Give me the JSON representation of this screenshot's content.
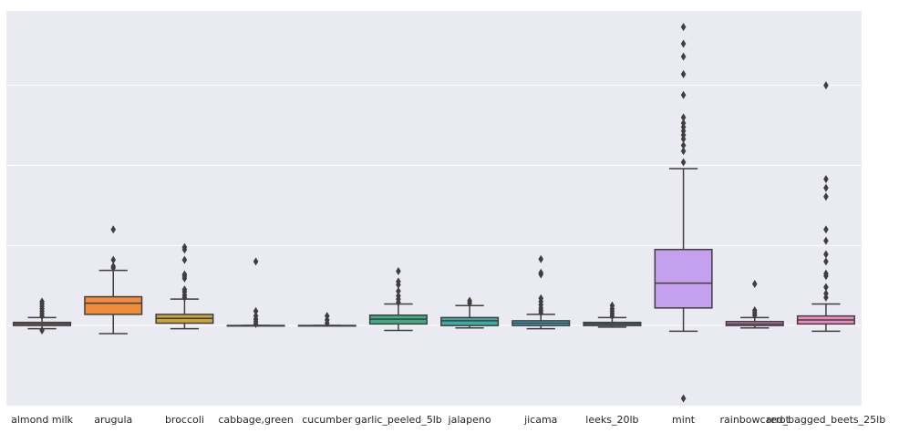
{
  "chart_data": {
    "type": "box",
    "title": "",
    "xlabel": "",
    "ylabel": "",
    "ylim": [
      -10,
      39.3
    ],
    "grid": true,
    "background": "#eaeaf2",
    "gridlines_y": [
      0,
      10,
      20,
      30
    ],
    "categories": [
      "almond milk",
      "arugula",
      "broccoli",
      "cabbage,green",
      "cucumber",
      "garlic_peeled_5lb",
      "jalapeno",
      "jicama",
      "leeks_20lb",
      "mint",
      "rainbowcarrot",
      "red_bagged_beets_25lb"
    ],
    "colors": [
      "#e8828e",
      "#f08d3c",
      "#c9a53f",
      "#9aac3f",
      "#4cb262",
      "#3fae84",
      "#3cada4",
      "#3baac0",
      "#4a9dd6",
      "#c4a0ef",
      "#e480cf",
      "#f089c0"
    ],
    "boxes": [
      {
        "whislo": -0.4,
        "q1": 0.0,
        "med": 0.2,
        "q3": 0.4,
        "whishi": 1.0,
        "fliers": [
          1.2,
          1.5,
          1.8,
          2.1,
          2.4,
          2.7,
          3.0,
          -0.6
        ]
      },
      {
        "whislo": -1.0,
        "q1": 1.4,
        "med": 2.8,
        "q3": 3.6,
        "whishi": 6.9,
        "fliers": [
          7.2,
          7.4,
          8.2,
          12.0
        ]
      },
      {
        "whislo": -0.4,
        "q1": 0.3,
        "med": 0.9,
        "q3": 1.4,
        "whishi": 3.3,
        "fliers": [
          3.5,
          3.8,
          4.2,
          4.5,
          5.9,
          6.2,
          6.4,
          8.2,
          9.5,
          9.8
        ]
      },
      {
        "whislo": 0.0,
        "q1": 0.0,
        "med": 0.0,
        "q3": 0.0,
        "whishi": 0.0,
        "fliers": [
          0.2,
          0.5,
          0.8,
          1.2,
          1.8,
          8.0
        ]
      },
      {
        "whislo": 0.0,
        "q1": 0.0,
        "med": 0.0,
        "q3": 0.0,
        "whishi": 0.0,
        "fliers": [
          0.3,
          0.7,
          1.2
        ]
      },
      {
        "whislo": -0.6,
        "q1": 0.2,
        "med": 0.8,
        "q3": 1.3,
        "whishi": 2.7,
        "fliers": [
          2.9,
          3.3,
          3.7,
          4.3,
          5.1,
          5.5,
          6.8
        ]
      },
      {
        "whislo": -0.3,
        "q1": 0.0,
        "med": 0.6,
        "q3": 1.0,
        "whishi": 2.5,
        "fliers": [
          2.8,
          3.1
        ]
      },
      {
        "whislo": -0.4,
        "q1": 0.0,
        "med": 0.3,
        "q3": 0.6,
        "whishi": 1.4,
        "fliers": [
          1.6,
          1.9,
          2.2,
          2.6,
          3.0,
          3.4,
          6.4,
          6.6,
          8.3
        ]
      },
      {
        "whislo": -0.2,
        "q1": 0.0,
        "med": 0.2,
        "q3": 0.4,
        "whishi": 1.0,
        "fliers": [
          1.2,
          1.5,
          1.8,
          2.1,
          2.5
        ]
      },
      {
        "whislo": -0.7,
        "q1": 2.2,
        "med": 5.3,
        "q3": 9.5,
        "whishi": 19.6,
        "fliers": [
          20.4,
          21.8,
          22.5,
          23.3,
          23.8,
          24.3,
          24.8,
          25.3,
          26.0,
          28.8,
          31.4,
          33.6,
          35.2,
          37.3,
          -9.1
        ]
      },
      {
        "whislo": -0.3,
        "q1": 0.0,
        "med": 0.2,
        "q3": 0.5,
        "whishi": 1.0,
        "fliers": [
          1.3,
          1.6,
          1.9,
          5.2
        ]
      },
      {
        "whislo": -0.7,
        "q1": 0.2,
        "med": 0.7,
        "q3": 1.2,
        "whishi": 2.7,
        "fliers": [
          3.5,
          4.0,
          4.8,
          6.2,
          6.5,
          8.0,
          8.9,
          10.6,
          12.0,
          16.1,
          17.2,
          18.3,
          30.0
        ]
      }
    ]
  }
}
